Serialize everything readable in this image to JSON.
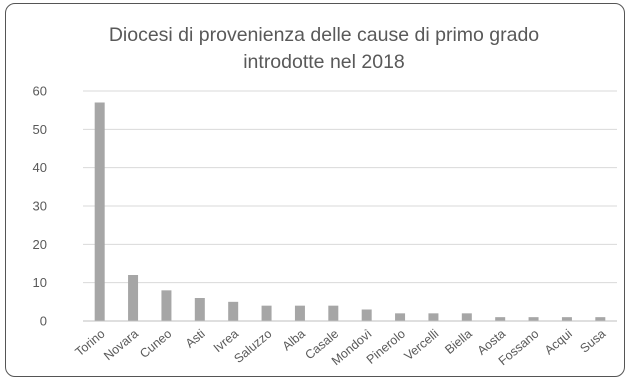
{
  "chart_data": {
    "type": "bar",
    "title_lines": [
      "Diocesi di provenienza delle cause di primo grado",
      "introdotte nel 2018"
    ],
    "categories": [
      "Torino",
      "Novara",
      "Cuneo",
      "Asti",
      "Ivrea",
      "Saluzzo",
      "Alba",
      "Casale",
      "Mondovì",
      "Pinerolo",
      "Vercelli",
      "Biella",
      "Aosta",
      "Fossano",
      "Acqui",
      "Susa"
    ],
    "values": [
      57,
      12,
      8,
      6,
      5,
      4,
      4,
      4,
      3,
      2,
      2,
      2,
      1,
      1,
      1,
      1
    ],
    "ylim": [
      0,
      60
    ],
    "yticks": [
      0,
      10,
      20,
      30,
      40,
      50,
      60
    ],
    "grid": true,
    "legend": "none",
    "colors": {
      "bar": "#a6a6a6",
      "grid": "#d9d9d9",
      "axis": "#bfbfbf",
      "text": "#595959"
    }
  }
}
